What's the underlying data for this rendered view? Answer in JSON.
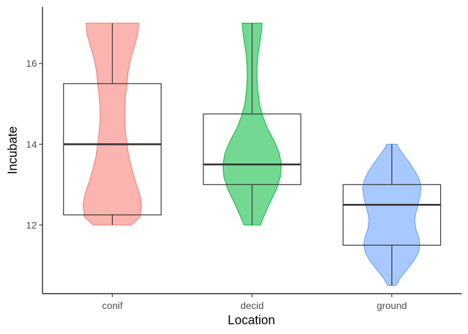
{
  "chart_data": {
    "type": "violin",
    "xlabel": "Location",
    "ylabel": "Incubate",
    "categories": [
      "conif",
      "decid",
      "ground"
    ],
    "ylim": [
      10.3,
      17.4
    ],
    "y_ticks": [
      12,
      14,
      16
    ],
    "y_tick_labels": [
      "12",
      "14",
      "16"
    ],
    "grid": false,
    "legend": "none",
    "series": [
      {
        "category": "conif",
        "fill": "#F8766D",
        "box": {
          "whisker_low": 12.0,
          "q1": 12.25,
          "median": 14.0,
          "q3": 15.5,
          "whisker_high": 17.0
        },
        "violin_profile": [
          [
            12.0,
            0.65
          ],
          [
            12.2,
            0.95
          ],
          [
            12.5,
            1.0
          ],
          [
            12.8,
            0.92
          ],
          [
            13.1,
            0.78
          ],
          [
            13.4,
            0.66
          ],
          [
            13.7,
            0.56
          ],
          [
            14.0,
            0.5
          ],
          [
            14.3,
            0.45
          ],
          [
            14.6,
            0.42
          ],
          [
            14.9,
            0.42
          ],
          [
            15.2,
            0.45
          ],
          [
            15.5,
            0.5
          ],
          [
            15.8,
            0.54
          ],
          [
            16.1,
            0.62
          ],
          [
            16.4,
            0.74
          ],
          [
            16.7,
            0.86
          ],
          [
            17.0,
            0.9
          ]
        ]
      },
      {
        "category": "decid",
        "fill": "#00BA38",
        "box": {
          "whisker_low": 12.0,
          "q1": 13.0,
          "median": 13.5,
          "q3": 14.75,
          "whisker_high": 17.0
        },
        "violin_profile": [
          [
            12.0,
            0.28
          ],
          [
            12.3,
            0.45
          ],
          [
            12.6,
            0.64
          ],
          [
            12.9,
            0.84
          ],
          [
            13.2,
            0.97
          ],
          [
            13.5,
            1.0
          ],
          [
            13.8,
            0.92
          ],
          [
            14.1,
            0.74
          ],
          [
            14.4,
            0.52
          ],
          [
            14.7,
            0.36
          ],
          [
            15.0,
            0.25
          ],
          [
            15.3,
            0.2
          ],
          [
            15.6,
            0.17
          ],
          [
            15.9,
            0.17
          ],
          [
            16.2,
            0.2
          ],
          [
            16.5,
            0.26
          ],
          [
            16.8,
            0.32
          ],
          [
            17.0,
            0.34
          ]
        ]
      },
      {
        "category": "ground",
        "fill": "#619CFF",
        "box": {
          "whisker_low": 10.5,
          "q1": 11.5,
          "median": 12.5,
          "q3": 13.0,
          "whisker_high": 14.0
        },
        "violin_profile": [
          [
            10.5,
            0.14
          ],
          [
            10.7,
            0.3
          ],
          [
            10.9,
            0.52
          ],
          [
            11.1,
            0.74
          ],
          [
            11.3,
            0.9
          ],
          [
            11.5,
            0.96
          ],
          [
            11.7,
            0.92
          ],
          [
            11.9,
            0.82
          ],
          [
            12.1,
            0.78
          ],
          [
            12.3,
            0.82
          ],
          [
            12.5,
            0.9
          ],
          [
            12.7,
            0.96
          ],
          [
            12.9,
            1.0
          ],
          [
            13.1,
            0.95
          ],
          [
            13.3,
            0.82
          ],
          [
            13.5,
            0.64
          ],
          [
            13.7,
            0.44
          ],
          [
            13.9,
            0.24
          ],
          [
            14.0,
            0.18
          ]
        ]
      }
    ]
  }
}
